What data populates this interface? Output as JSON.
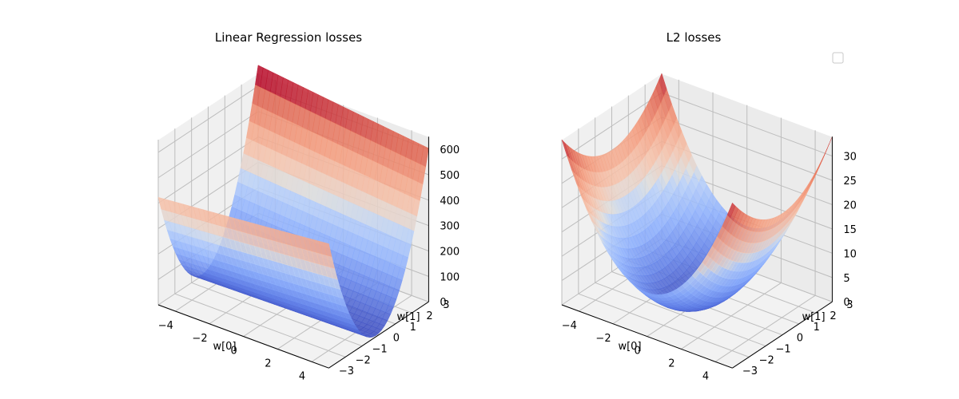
{
  "chart_data": [
    {
      "type": "surface3d",
      "title": "Linear Regression losses",
      "xlabel": "w[0]",
      "ylabel": "w[1]",
      "zlabel": "",
      "x_ticks": [
        "−4",
        "−2",
        "0",
        "2",
        "4"
      ],
      "y_ticks": [
        "−3",
        "−2",
        "−1",
        "0",
        "1",
        "2",
        "3"
      ],
      "z_ticks": [
        "0",
        "100",
        "200",
        "300",
        "400",
        "500",
        "600"
      ],
      "xlim": [
        -5,
        5
      ],
      "ylim": [
        -3,
        3
      ],
      "zlim": [
        0,
        650
      ],
      "colormap": "coolwarm",
      "grid": true,
      "formula": "z = 60*(w1 - 0.02*w0 + 0.26)^2 + 5",
      "legend": null
    },
    {
      "type": "surface3d",
      "title": "L2 losses",
      "xlabel": "w[0]",
      "ylabel": "w[1]",
      "zlabel": "",
      "x_ticks": [
        "−4",
        "−2",
        "0",
        "2",
        "4"
      ],
      "y_ticks": [
        "−3",
        "−2",
        "−1",
        "0",
        "1",
        "2",
        "3"
      ],
      "z_ticks": [
        "0",
        "5",
        "10",
        "15",
        "20",
        "25",
        "30"
      ],
      "xlim": [
        -5,
        5
      ],
      "ylim": [
        -3,
        3
      ],
      "zlim": [
        0,
        34
      ],
      "colormap": "coolwarm",
      "grid": true,
      "formula": "z = w0^2 + w1^2",
      "legend": {
        "placement": "top-right",
        "entries": []
      }
    }
  ]
}
